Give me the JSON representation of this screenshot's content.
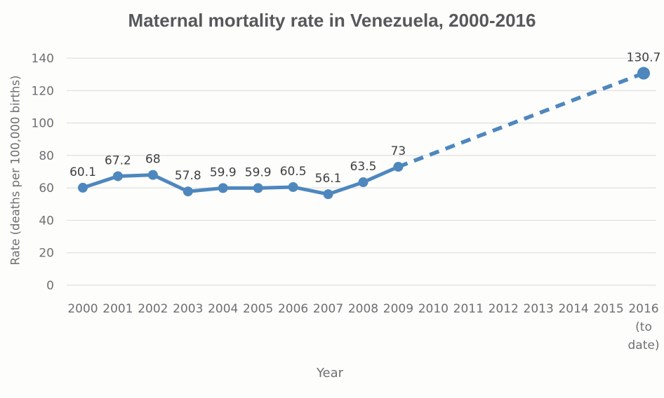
{
  "page": {
    "background": "#fdfdfb"
  },
  "chart_data": {
    "type": "line",
    "title": "Maternal mortality rate in Venezuela, 2000-2016",
    "xlabel": "Year",
    "ylabel": "Rate (deaths per 100,000 births)",
    "ylim": [
      0,
      140
    ],
    "yticks": [
      0,
      20,
      40,
      60,
      80,
      100,
      120,
      140
    ],
    "grid": true,
    "legend_position": "none",
    "categories": [
      "2000",
      "2001",
      "2002",
      "2003",
      "2004",
      "2005",
      "2006",
      "2007",
      "2008",
      "2009",
      "2010",
      "2011",
      "2012",
      "2013",
      "2014",
      "2015",
      "2016"
    ],
    "last_category_note_lines": [
      "(to",
      "date)"
    ],
    "series": [
      {
        "name": "Maternal mortality rate",
        "color": "#4e87be",
        "solid_through_category": "2009",
        "points": [
          {
            "category": "2000",
            "value": 60.1,
            "label": "60.1"
          },
          {
            "category": "2001",
            "value": 67.2,
            "label": "67.2"
          },
          {
            "category": "2002",
            "value": 68,
            "label": "68"
          },
          {
            "category": "2003",
            "value": 57.8,
            "label": "57.8"
          },
          {
            "category": "2004",
            "value": 59.9,
            "label": "59.9"
          },
          {
            "category": "2005",
            "value": 59.9,
            "label": "59.9"
          },
          {
            "category": "2006",
            "value": 60.5,
            "label": "60.5"
          },
          {
            "category": "2007",
            "value": 56.1,
            "label": "56.1"
          },
          {
            "category": "2008",
            "value": 63.5,
            "label": "63.5"
          },
          {
            "category": "2009",
            "value": 73,
            "label": "73"
          },
          {
            "category": "2016",
            "value": 130.7,
            "label": "130.7"
          }
        ]
      }
    ]
  },
  "colors": {
    "title": "#57585a",
    "axis_text": "#6e6f72",
    "grid": "#d9d9d9",
    "line": "#4e87be",
    "point_label": "#3e3f41"
  }
}
